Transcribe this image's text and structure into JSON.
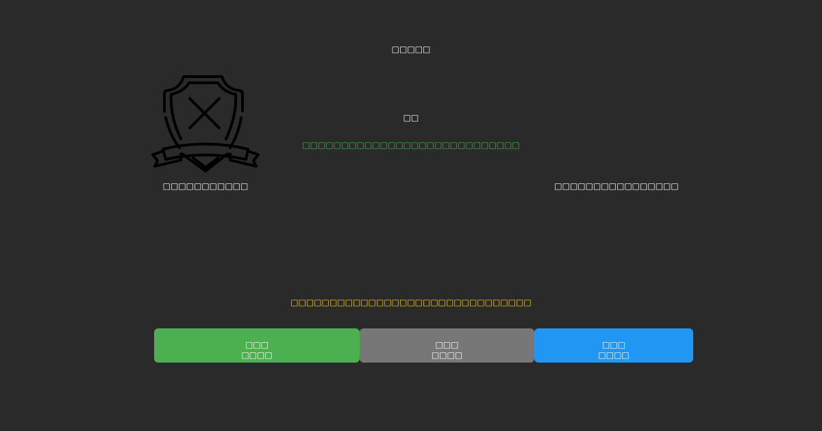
{
  "header": {
    "title": "□□□□□"
  },
  "status": {
    "heading": "□□",
    "message": "□□□□□□□□□□□□□□□□□□□□□□□□□□□□",
    "message_color": "#4caf50"
  },
  "left_label": "□□□□□□□□□□□",
  "right_label": "□□□□□□□□□□□□□□□□",
  "warning": {
    "text": "□□□□□□□□□□□□□□□□□□□□□□□□□□□□□□□",
    "color": "#ffd600"
  },
  "icon": "shield-x-icon",
  "buttons": [
    {
      "line1": "□□□",
      "line2": "□□□□",
      "color": "#4caf50"
    },
    {
      "line1": "□□□",
      "line2": "□□□□",
      "color": "#777777"
    },
    {
      "line1": "□□□",
      "line2": "□□□□",
      "color": "#2196f3"
    }
  ]
}
